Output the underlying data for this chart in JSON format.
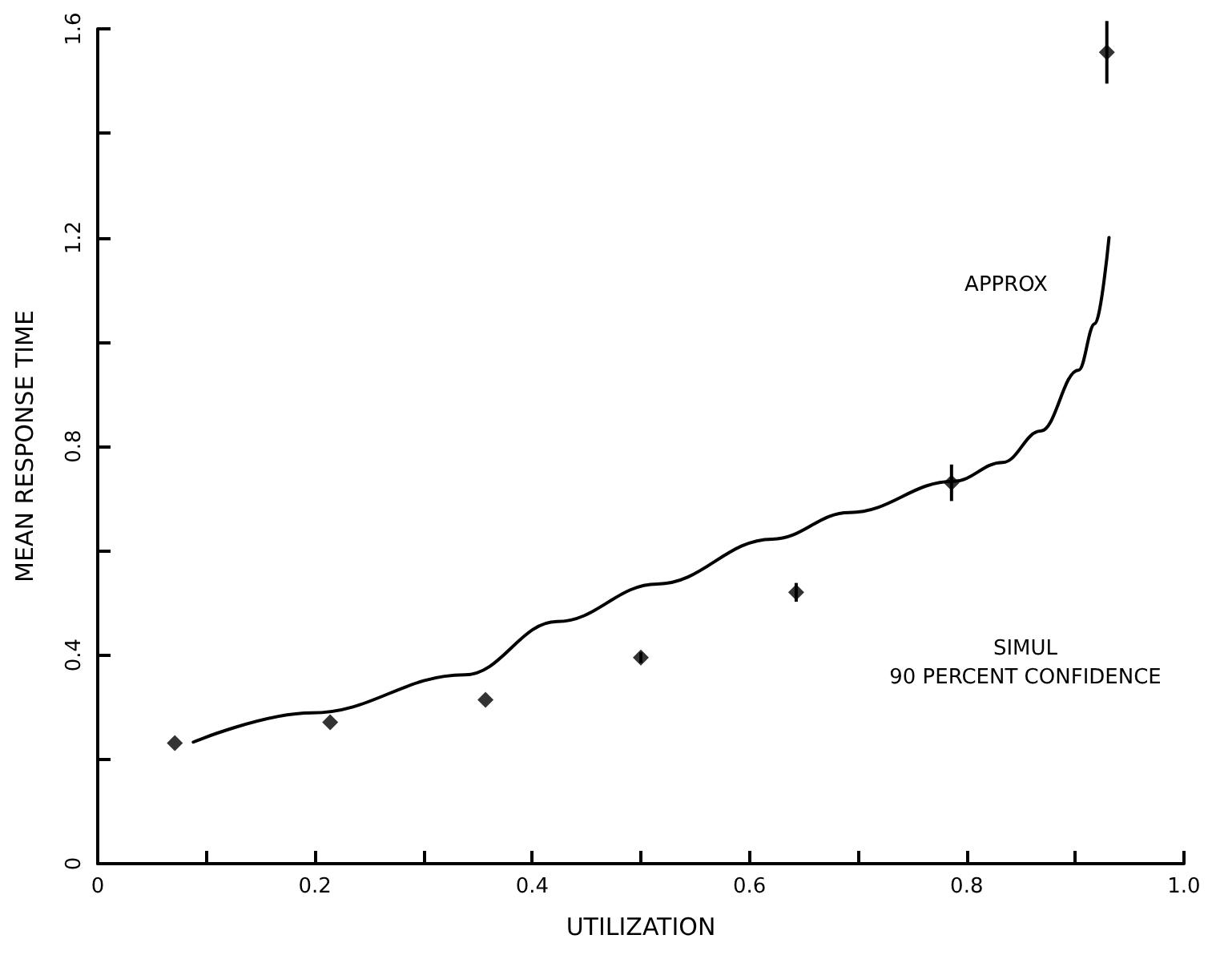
{
  "chart_data": {
    "type": "scatter",
    "xlabel": "UTILIZATION",
    "ylabel": "MEAN RESPONSE TIME",
    "xlim": [
      0,
      1
    ],
    "ylim": [
      0,
      1.6
    ],
    "xticks": [
      0,
      {
        "value": 0.1,
        "label": null
      },
      0.2,
      {
        "value": 0.3,
        "label": null
      },
      0.4,
      {
        "value": 0.5,
        "label": null
      },
      0.6,
      {
        "value": 0.7,
        "label": null
      },
      0.8,
      {
        "value": 0.9,
        "label": null
      },
      {
        "value": 1,
        "label": "1.0"
      }
    ],
    "yticks": [
      0,
      {
        "value": 0.2,
        "label": null
      },
      0.4,
      {
        "value": 0.6,
        "label": null
      },
      0.8,
      {
        "value": 1.0,
        "label": null
      },
      1.2,
      {
        "value": 1.4,
        "label": null
      },
      1.6
    ],
    "grid": false,
    "series": [
      {
        "color": "#000000",
        "marker": "diamond",
        "x": [
          0.071,
          0.214,
          0.357,
          0.5,
          0.643,
          0.786,
          0.929
        ],
        "values": [
          0.231,
          0.271,
          0.314,
          0.395,
          0.52,
          0.73,
          1.555
        ],
        "errors": [
          null,
          null,
          null,
          0.01,
          0.018,
          0.035,
          0.06
        ]
      },
      {
        "type": "line",
        "color": "#000000",
        "marker": "none",
        "line_style": "solid",
        "x": [
          0.088,
          0.197,
          0.338,
          0.423,
          0.515,
          0.621,
          0.692,
          0.788,
          0.833,
          0.868,
          0.903,
          0.918,
          0.931
        ],
        "values": [
          0.233,
          0.289,
          0.362,
          0.464,
          0.536,
          0.622,
          0.673,
          0.733,
          0.769,
          0.829,
          0.946,
          1.035,
          1.2
        ]
      }
    ],
    "annotations": [
      "APPROX",
      "SIMUL",
      "90 PERCENT CONFIDENCE"
    ]
  }
}
